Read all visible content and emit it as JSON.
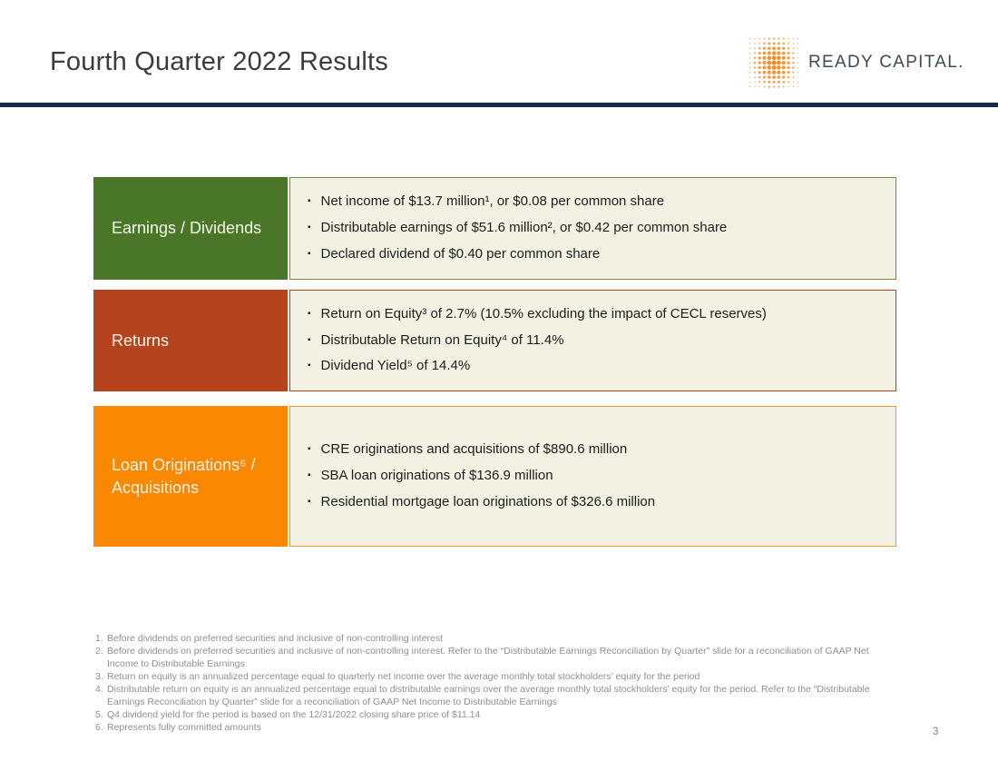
{
  "header": {
    "title": "Fourth Quarter 2022 Results",
    "logo_text": "READY CAPITAL."
  },
  "colors": {
    "navy_rule": "#14294e",
    "green": "#4a7628",
    "rust": "#b5431d",
    "orange": "#fa8800",
    "content_bg": "#f3f1e2",
    "logo_dot_orange": "#ef8b1f",
    "logo_text_color": "#3e4a54"
  },
  "rows": [
    {
      "label": "Earnings / Dividends",
      "color": "#4a7628",
      "border": "#6f8f45",
      "bullets": [
        "Net income of $13.7 million¹, or $0.08 per common share",
        "Distributable earnings of $51.6 million², or $0.42 per common share",
        "Declared dividend of $0.40 per common share"
      ]
    },
    {
      "label": "Returns",
      "color": "#b5431d",
      "border": "#b5431d",
      "bullets": [
        "Return on Equity³ of 2.7% (10.5% excluding the impact of CECL reserves)",
        "Distributable Return on Equity⁴ of 11.4%",
        "Dividend Yield⁵ of 14.4%"
      ]
    },
    {
      "label": "Loan Originations⁶ / Acquisitions",
      "color": "#fa8800",
      "border": "#f79428",
      "bullets": [
        "CRE originations and acquisitions of $890.6 million",
        "SBA loan originations of $136.9 million",
        "Residential mortgage loan originations of $326.6 million"
      ]
    }
  ],
  "footnotes": [
    {
      "num": "1.",
      "text": "Before dividends on preferred securities and inclusive of non-controlling interest"
    },
    {
      "num": "2.",
      "text": "Before dividends on preferred securities and inclusive of non-controlling interest. Refer to the “Distributable Earnings Reconciliation by Quarter” slide for a reconciliation of GAAP Net Income to Distributable Earnings"
    },
    {
      "num": "3.",
      "text": "Return on equity is an annualized percentage equal to quarterly net income over the average monthly total stockholders’ equity for the period"
    },
    {
      "num": "4.",
      "text": "Distributable return on equity is an annualized percentage equal to distributable earnings over the average monthly total stockholders’ equity for the period. Refer to the “Distributable Earnings Reconciliation by Quarter” slide for a reconciliation of GAAP Net Income to Distributable Earnings"
    },
    {
      "num": "5.",
      "text": "Q4 dividend yield for the period is based on the 12/31/2022 closing share price of $11.14"
    },
    {
      "num": "6.",
      "text": "Represents fully committed amounts"
    }
  ],
  "footer": {
    "page_number": "3"
  }
}
